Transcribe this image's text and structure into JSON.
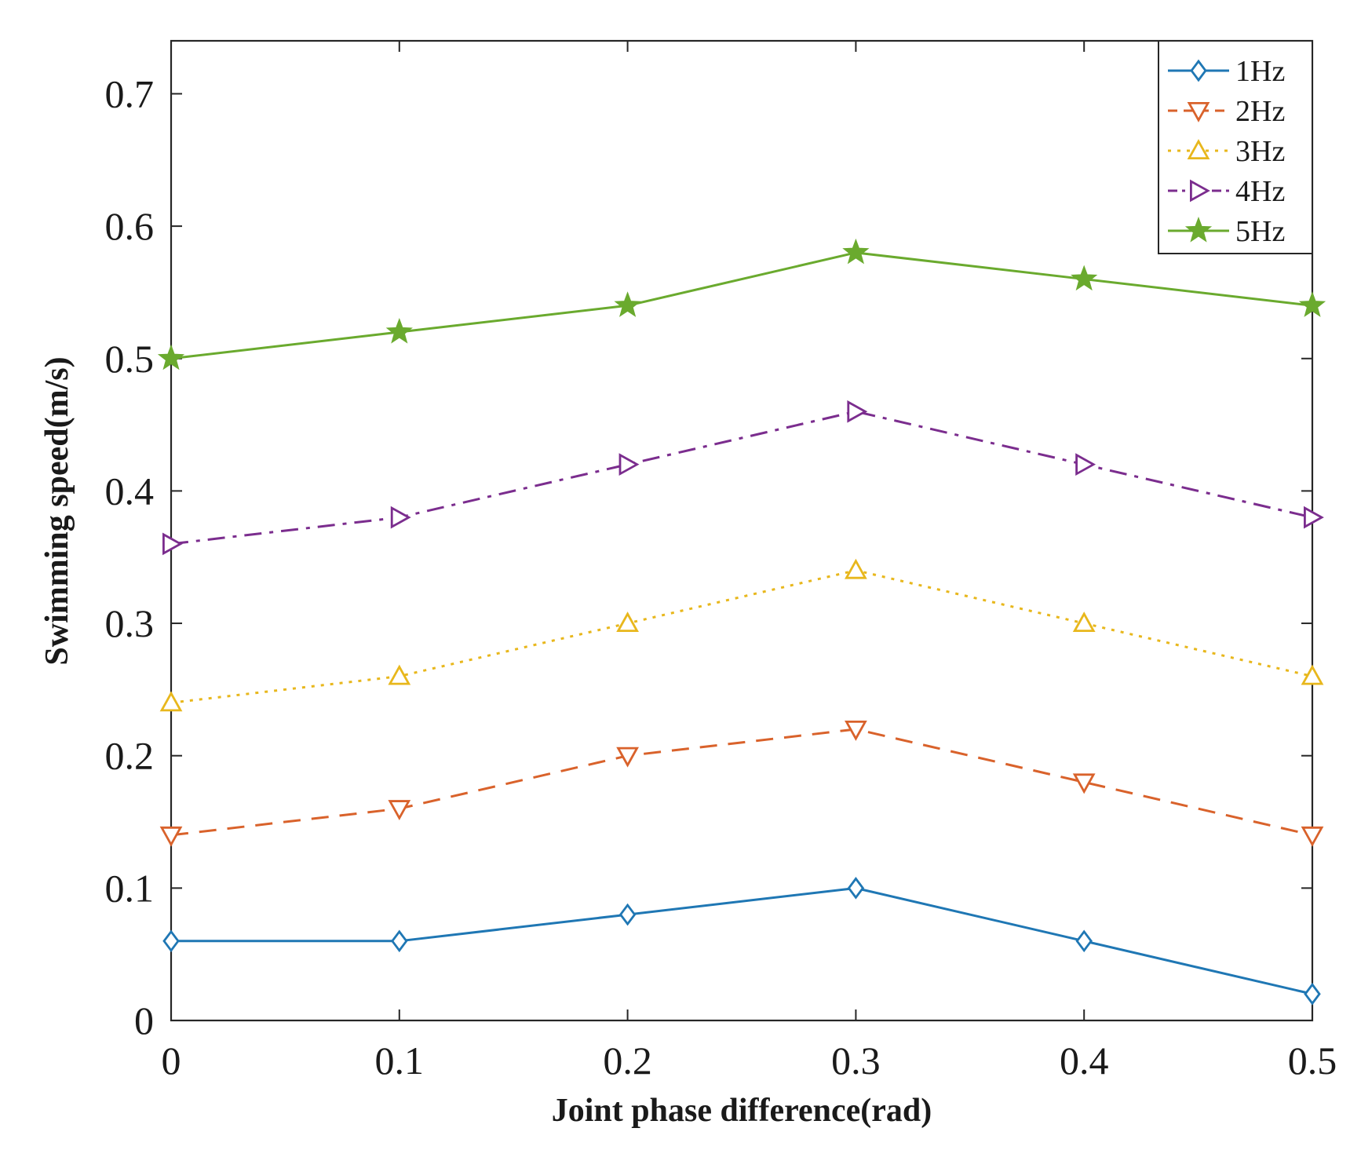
{
  "chart_data": {
    "type": "line",
    "title": "",
    "xlabel": "Joint phase difference(rad)",
    "ylabel": "Swimming speed(m/s)",
    "x": [
      0,
      0.1,
      0.2,
      0.3,
      0.4,
      0.5
    ],
    "x_tick_labels": [
      "0",
      "0.1",
      "0.2",
      "0.3",
      "0.4",
      "0.5"
    ],
    "y_tick_labels": [
      "0",
      "0.1",
      "0.2",
      "0.3",
      "0.4",
      "0.5",
      "0.6",
      "0.7"
    ],
    "y_ticks": [
      0,
      0.1,
      0.2,
      0.3,
      0.4,
      0.5,
      0.6,
      0.7
    ],
    "xlim": [
      0,
      0.5
    ],
    "ylim": [
      0,
      0.74
    ],
    "grid": false,
    "legend_position": "top-right",
    "series": [
      {
        "name": "1Hz",
        "color": "#1f77b4",
        "line_style": "solid",
        "marker": "diamond",
        "values": [
          0.06,
          0.06,
          0.08,
          0.1,
          0.06,
          0.02
        ]
      },
      {
        "name": "2Hz",
        "color": "#d9622b",
        "line_style": "dashed",
        "marker": "triangle-down",
        "values": [
          0.14,
          0.16,
          0.2,
          0.22,
          0.18,
          0.14
        ]
      },
      {
        "name": "3Hz",
        "color": "#e8b71c",
        "line_style": "dotted",
        "marker": "triangle-up",
        "values": [
          0.24,
          0.26,
          0.3,
          0.34,
          0.3,
          0.26
        ]
      },
      {
        "name": "4Hz",
        "color": "#7b2d8e",
        "line_style": "dash-dot",
        "marker": "triangle-right",
        "values": [
          0.36,
          0.38,
          0.42,
          0.46,
          0.42,
          0.38
        ]
      },
      {
        "name": "5Hz",
        "color": "#6aaa2e",
        "line_style": "solid",
        "marker": "star",
        "values": [
          0.5,
          0.52,
          0.54,
          0.58,
          0.56,
          0.54
        ]
      }
    ]
  }
}
